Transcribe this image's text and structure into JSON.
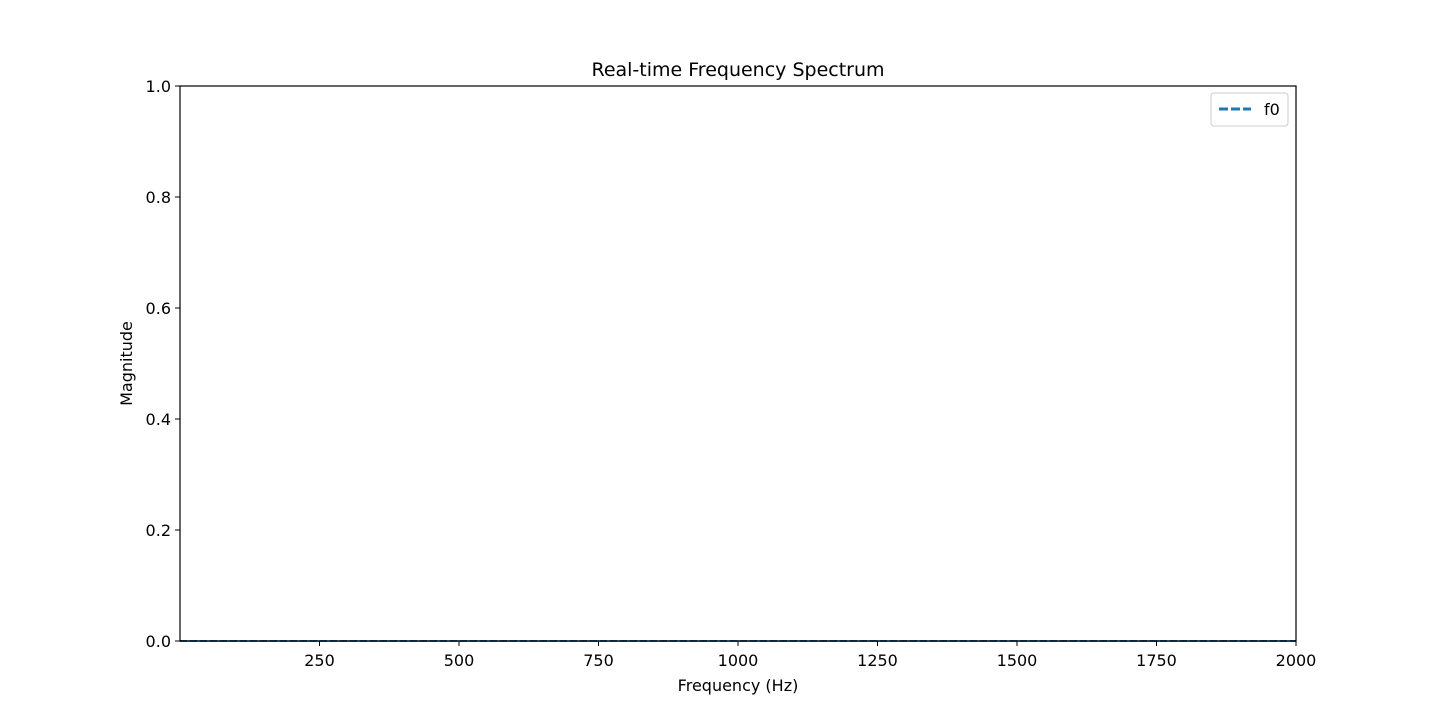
{
  "chart_data": {
    "type": "line",
    "title": "Real-time Frequency Spectrum",
    "xlabel": "Frequency (Hz)",
    "ylabel": "Magnitude",
    "xlim": [
      0,
      2000
    ],
    "ylim": [
      0.0,
      1.0
    ],
    "x_ticks": [
      250,
      500,
      750,
      1000,
      1250,
      1500,
      1750,
      2000
    ],
    "x_tick_labels": [
      "250",
      "500",
      "750",
      "1000",
      "1250",
      "1500",
      "1750",
      "2000"
    ],
    "y_ticks": [
      0.0,
      0.2,
      0.4,
      0.6,
      0.8,
      1.0
    ],
    "y_tick_labels": [
      "0.0",
      "0.2",
      "0.4",
      "0.6",
      "0.8",
      "1.0"
    ],
    "grid": false,
    "legend_position": "top-right",
    "series": [
      {
        "name": "f0",
        "color": "#1f77b4",
        "line_style": "dashed",
        "x": [
          0,
          2000
        ],
        "y": [
          0.0,
          0.0
        ]
      }
    ],
    "spectrum_line": {
      "color": "#1f4e79",
      "x": [
        0,
        2000
      ],
      "y": [
        0.0,
        0.0
      ]
    }
  }
}
